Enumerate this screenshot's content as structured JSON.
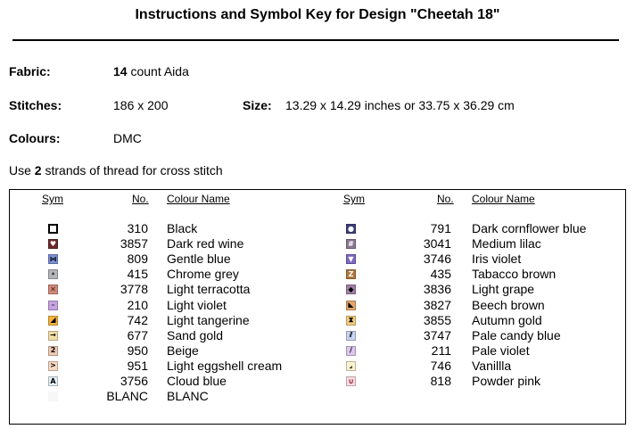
{
  "title": "Instructions and Symbol Key for Design \"Cheetah 18\"",
  "fabric": {
    "label": "Fabric:",
    "count": "14",
    "rest": " count Aida"
  },
  "stitches": {
    "label": "Stitches:",
    "value": "186 x 200"
  },
  "size": {
    "label": "Size:",
    "value": "13.29 x 14.29 inches or 33.75 x 36.29 cm"
  },
  "colours": {
    "label": "Colours:",
    "value": "DMC"
  },
  "note": {
    "pre": "Use ",
    "strands": "2",
    "post": " strands of thread for cross stitch"
  },
  "headers": {
    "sym": "Sym",
    "no": "No.",
    "name": "Colour Name"
  },
  "left_rows": [
    {
      "no": "310",
      "name": "Black",
      "icon": "hollow-square",
      "fill": "#ffffff",
      "glyph": "",
      "fg": "#000000"
    },
    {
      "no": "3857",
      "name": "Dark red wine",
      "icon": "heart",
      "fill": "#6b2a2e",
      "glyph": "♥",
      "fg": "#ffffff"
    },
    {
      "no": "809",
      "name": "Gentle blue",
      "icon": "bowtie",
      "fill": "#7b8fd6",
      "glyph": "⋈",
      "fg": "#000000"
    },
    {
      "no": "415",
      "name": "Chrome grey",
      "icon": "dot",
      "fill": "#b4b6bb",
      "glyph": "•",
      "fg": "#333333"
    },
    {
      "no": "3778",
      "name": "Light terracotta",
      "icon": "x",
      "fill": "#d08a7a",
      "glyph": "✕",
      "fg": "#4a1a10"
    },
    {
      "no": "210",
      "name": "Light violet",
      "icon": "dash",
      "fill": "#c7a3e0",
      "glyph": "–",
      "fg": "#3a2a5a"
    },
    {
      "no": "742",
      "name": "Light tangerine",
      "icon": "triangle",
      "fill": "#f6b23c",
      "glyph": "◢",
      "fg": "#000000"
    },
    {
      "no": "677",
      "name": "Sand gold",
      "icon": "arrow-right",
      "fill": "#f2dfa8",
      "glyph": "→",
      "fg": "#000000"
    },
    {
      "no": "950",
      "name": "Beige",
      "icon": "numeral-2",
      "fill": "#eec8b3",
      "glyph": "2",
      "fg": "#000000"
    },
    {
      "no": "951",
      "name": "Light eggshell cream",
      "icon": "chevron",
      "fill": "#f6d8c2",
      "glyph": ">",
      "fg": "#000000"
    },
    {
      "no": "3756",
      "name": "Cloud blue",
      "icon": "letter-a",
      "fill": "#e4f0f7",
      "glyph": "A",
      "fg": "#000000"
    },
    {
      "no": "BLANC",
      "name": "BLANC",
      "icon": "blank",
      "fill": "#f7f7f7",
      "glyph": "",
      "fg": "#000000"
    }
  ],
  "right_rows": [
    {
      "no": "791",
      "name": "Dark cornflower blue",
      "icon": "circle",
      "fill": "#3d3f7a",
      "glyph": "●",
      "fg": "#ffffff"
    },
    {
      "no": "3041",
      "name": "Medium lilac",
      "icon": "hash",
      "fill": "#8b7690",
      "glyph": "#",
      "fg": "#ffffff"
    },
    {
      "no": "3746",
      "name": "Iris violet",
      "icon": "triangle-down",
      "fill": "#7e68c4",
      "glyph": "▼",
      "fg": "#ffffff"
    },
    {
      "no": "435",
      "name": "Tabacco brown",
      "icon": "letter-z",
      "fill": "#b3773f",
      "glyph": "Z",
      "fg": "#ffffff"
    },
    {
      "no": "3836",
      "name": "Light grape",
      "icon": "diamond",
      "fill": "#a17fa8",
      "glyph": "◆",
      "fg": "#000000"
    },
    {
      "no": "3827",
      "name": "Beech brown",
      "icon": "triangle-corner",
      "fill": "#e2a56b",
      "glyph": "◣",
      "fg": "#000000"
    },
    {
      "no": "3855",
      "name": "Autumn gold",
      "icon": "hourglass",
      "fill": "#f4ce7e",
      "glyph": "⧗",
      "fg": "#000000"
    },
    {
      "no": "3747",
      "name": "Pale candy blue",
      "icon": "double-slash",
      "fill": "#c9d3f3",
      "glyph": "⫽",
      "fg": "#000000"
    },
    {
      "no": "211",
      "name": "Pale violet",
      "icon": "slash",
      "fill": "#dcc6ee",
      "glyph": "/",
      "fg": "#000000"
    },
    {
      "no": "746",
      "name": "Vanillla",
      "icon": "corner",
      "fill": "#fbf2cf",
      "glyph": "⌟",
      "fg": "#000000"
    },
    {
      "no": "818",
      "name": "Powder pink",
      "icon": "cup",
      "fill": "#fadbe1",
      "glyph": "∪",
      "fg": "#8a2030"
    }
  ]
}
